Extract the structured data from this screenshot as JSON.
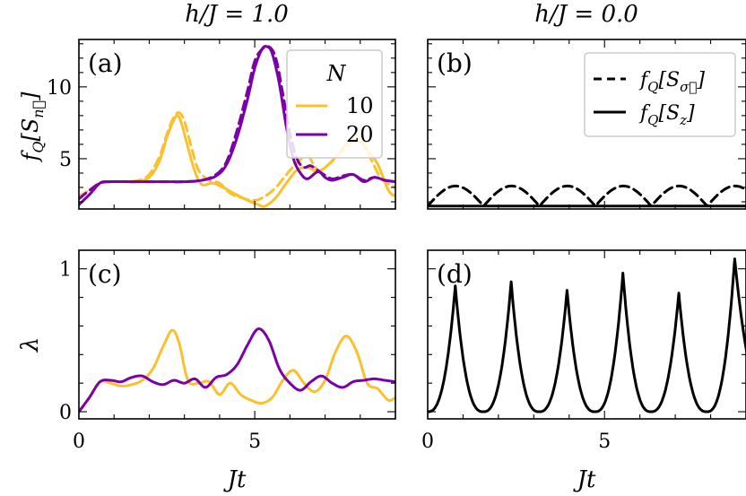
{
  "colors": {
    "yellow": "#FBC02D",
    "purple": "#7B00A8",
    "black": "#000000"
  },
  "column_titles": {
    "left": "h/J = 1.0",
    "right": "h/J = 0.0"
  },
  "y_labels": {
    "top": "f_Q[S_n]",
    "bottom": "λ"
  },
  "x_label": "Jt",
  "chart_data": [
    {
      "id": "a",
      "type": "line",
      "panel_label": "(a)",
      "xlim": [
        0,
        9
      ],
      "ylim": [
        1.5,
        13.3
      ],
      "xticks": [
        0,
        5
      ],
      "yticks": [
        5,
        10
      ],
      "xtick_labels": [],
      "ytick_labels": [
        "5",
        "10"
      ],
      "legend": {
        "title": "N",
        "entries": [
          "10",
          "20"
        ],
        "placement": "top-right"
      },
      "series": [
        {
          "name": "10",
          "style": "solid",
          "color": "yellow",
          "x": [
            0,
            0.3,
            0.6,
            0.8,
            1.2,
            1.6,
            2.0,
            2.3,
            2.5,
            2.7,
            2.8,
            2.9,
            3.1,
            3.3,
            3.5,
            3.8,
            4.1,
            4.4,
            4.8,
            5.1,
            5.3,
            5.6,
            5.9,
            6.2,
            6.5,
            6.8,
            7.1,
            7.4,
            7.6,
            7.9,
            8.2,
            8.5,
            8.8,
            9.0
          ],
          "y": [
            1.8,
            2.5,
            3.3,
            3.4,
            3.4,
            3.4,
            3.7,
            4.9,
            6.5,
            7.7,
            8.0,
            7.6,
            5.8,
            4.1,
            3.2,
            3.3,
            3.0,
            2.6,
            2.1,
            1.8,
            1.7,
            2.3,
            3.3,
            4.2,
            4.4,
            4.1,
            4.6,
            5.4,
            6.0,
            6.6,
            5.6,
            4.6,
            2.8,
            2.4
          ]
        },
        {
          "name": "10 (dashed)",
          "style": "dashed",
          "color": "yellow",
          "x": [
            0,
            0.3,
            0.6,
            0.9,
            1.3,
            1.7,
            2.0,
            2.3,
            2.5,
            2.7,
            2.85,
            3.0,
            3.2,
            3.4,
            3.7,
            4.0,
            4.3,
            4.6,
            5.0,
            5.3,
            5.6,
            5.9,
            6.2,
            6.5,
            6.8,
            7.1,
            7.4,
            7.7,
            8.0,
            8.3,
            8.6,
            9.0
          ],
          "y": [
            2.4,
            2.8,
            3.3,
            3.4,
            3.4,
            3.5,
            3.9,
            5.2,
            6.7,
            7.9,
            8.2,
            7.6,
            5.8,
            4.2,
            3.5,
            3.3,
            2.6,
            2.3,
            2.1,
            2.4,
            3.0,
            3.9,
            4.7,
            5.2,
            4.2,
            4.6,
            5.3,
            6.0,
            6.2,
            5.0,
            3.6,
            3.0
          ]
        },
        {
          "name": "20",
          "style": "solid",
          "color": "purple",
          "x": [
            0,
            0.3,
            0.6,
            0.9,
            1.5,
            2.0,
            2.5,
            3.0,
            3.5,
            3.9,
            4.2,
            4.5,
            4.8,
            5.0,
            5.2,
            5.35,
            5.5,
            5.7,
            5.9,
            6.1,
            6.3,
            6.5,
            6.8,
            7.0,
            7.2,
            7.5,
            7.8,
            8.1,
            8.4,
            8.7,
            9.0
          ],
          "y": [
            1.8,
            2.5,
            3.3,
            3.4,
            3.4,
            3.4,
            3.4,
            3.4,
            3.5,
            3.8,
            4.6,
            6.5,
            9.2,
            11.3,
            12.6,
            12.8,
            12.3,
            10.2,
            7.2,
            5.0,
            4.0,
            3.6,
            4.1,
            3.7,
            3.5,
            3.7,
            3.9,
            3.4,
            3.7,
            3.5,
            3.4
          ]
        },
        {
          "name": "20 (dashed)",
          "style": "dashed",
          "color": "purple",
          "x": [
            0,
            0.3,
            0.6,
            0.9,
            1.5,
            2.0,
            2.5,
            3.0,
            3.5,
            3.9,
            4.2,
            4.5,
            4.8,
            5.0,
            5.2,
            5.4,
            5.6,
            5.8,
            6.0,
            6.2,
            6.4,
            6.6,
            6.9,
            7.2,
            7.5,
            7.8,
            8.1,
            8.4,
            8.7,
            9.0
          ],
          "y": [
            2.2,
            2.8,
            3.3,
            3.4,
            3.4,
            3.4,
            3.4,
            3.4,
            3.5,
            3.9,
            4.8,
            7.0,
            9.8,
            11.8,
            12.6,
            12.8,
            12.0,
            9.5,
            6.8,
            5.0,
            4.4,
            4.5,
            4.0,
            3.6,
            3.8,
            3.9,
            3.5,
            3.7,
            3.5,
            3.4
          ]
        }
      ]
    },
    {
      "id": "b",
      "type": "line",
      "panel_label": "(b)",
      "xlim": [
        0,
        9
      ],
      "ylim": [
        1.5,
        13.3
      ],
      "xticks": [
        0,
        5
      ],
      "yticks": [
        5,
        10
      ],
      "xtick_labels": [],
      "ytick_labels": [],
      "legend": {
        "entries": [
          "f_Q[S_σ]",
          "f_Q[S_z]"
        ],
        "placement": "top-right"
      },
      "series": [
        {
          "name": "f_Q[S_σ]",
          "style": "dashed",
          "color": "black",
          "function": "oscillation",
          "base": 1.7,
          "amplitude": 1.4,
          "period": 1.58
        },
        {
          "name": "f_Q[S_z]",
          "style": "solid",
          "color": "black",
          "function": "constant",
          "value": 1.7
        }
      ]
    },
    {
      "id": "c",
      "type": "line",
      "panel_label": "(c)",
      "xlim": [
        0,
        9
      ],
      "ylim": [
        -0.05,
        1.13
      ],
      "xticks": [
        0,
        5
      ],
      "yticks": [
        0,
        1
      ],
      "xtick_labels": [
        "0",
        "5"
      ],
      "ytick_labels": [
        "0",
        "1"
      ],
      "series": [
        {
          "name": "10",
          "style": "solid",
          "color": "yellow",
          "x": [
            0,
            0.3,
            0.6,
            0.9,
            1.2,
            1.5,
            1.8,
            2.1,
            2.4,
            2.65,
            2.85,
            3.1,
            3.4,
            3.7,
            4.0,
            4.3,
            4.6,
            4.9,
            5.2,
            5.5,
            5.8,
            6.1,
            6.4,
            6.7,
            7.0,
            7.3,
            7.6,
            7.9,
            8.2,
            8.5,
            8.8,
            9.0
          ],
          "y": [
            0.0,
            0.1,
            0.21,
            0.2,
            0.18,
            0.19,
            0.22,
            0.3,
            0.46,
            0.57,
            0.48,
            0.22,
            0.2,
            0.21,
            0.12,
            0.2,
            0.12,
            0.08,
            0.06,
            0.1,
            0.22,
            0.29,
            0.2,
            0.14,
            0.22,
            0.42,
            0.53,
            0.42,
            0.2,
            0.16,
            0.08,
            0.1
          ]
        },
        {
          "name": "20",
          "style": "solid",
          "color": "purple",
          "x": [
            0,
            0.3,
            0.6,
            0.9,
            1.2,
            1.5,
            1.8,
            2.1,
            2.4,
            2.7,
            3.0,
            3.3,
            3.6,
            3.9,
            4.2,
            4.5,
            4.8,
            5.1,
            5.4,
            5.7,
            6.0,
            6.3,
            6.6,
            6.9,
            7.2,
            7.5,
            7.8,
            8.1,
            8.4,
            8.7,
            9.0
          ],
          "y": [
            0.0,
            0.1,
            0.21,
            0.22,
            0.21,
            0.24,
            0.25,
            0.21,
            0.19,
            0.22,
            0.2,
            0.23,
            0.17,
            0.24,
            0.26,
            0.33,
            0.47,
            0.58,
            0.5,
            0.3,
            0.2,
            0.15,
            0.21,
            0.25,
            0.2,
            0.17,
            0.21,
            0.22,
            0.23,
            0.22,
            0.21
          ]
        }
      ]
    },
    {
      "id": "d",
      "type": "line",
      "panel_label": "(d)",
      "xlim": [
        0,
        9
      ],
      "ylim": [
        -0.05,
        1.13
      ],
      "xticks": [
        0,
        5
      ],
      "yticks": [
        0,
        1
      ],
      "xtick_labels": [
        "0",
        "5"
      ],
      "ytick_labels": [],
      "series": [
        {
          "name": "λ",
          "style": "solid",
          "color": "black",
          "function": "cusps",
          "peaks": [
            [
              0.78,
              0.88
            ],
            [
              2.36,
              0.91
            ],
            [
              3.94,
              0.85
            ],
            [
              5.52,
              0.97
            ],
            [
              7.1,
              0.83
            ],
            [
              8.68,
              1.07
            ]
          ],
          "minima_x": [
            0,
            1.57,
            3.15,
            4.73,
            6.31,
            7.89
          ],
          "minimum_value": 0.0,
          "end_value": 0.22
        }
      ]
    }
  ]
}
